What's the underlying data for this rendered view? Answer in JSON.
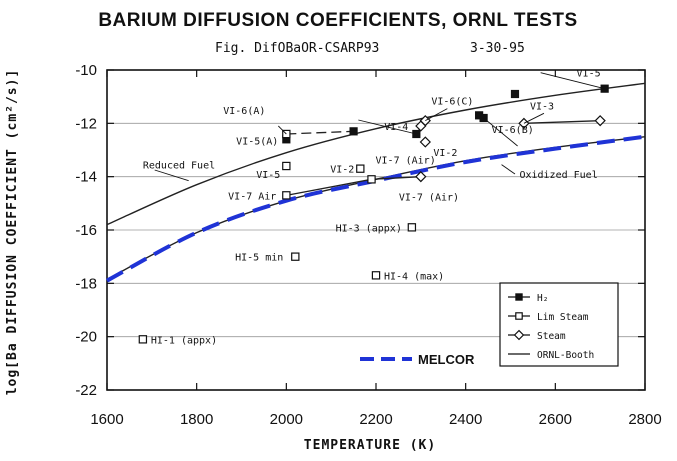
{
  "chart_data": {
    "type": "scatter",
    "title": "BARIUM DIFFUSION COEFFICIENTS, ORNL TESTS",
    "subtitle_fig": "Fig. DifOBaOR-CSARP93",
    "subtitle_date": "3-30-95",
    "xlabel": "TEMPERATURE (K)",
    "ylabel": "log[Ba DIFFUSION COEFFICIENT (cm²/s)]",
    "xlim": [
      1600,
      2800
    ],
    "ylim": [
      -22,
      -10
    ],
    "x_ticks": [
      1600,
      1800,
      2000,
      2200,
      2400,
      2600,
      2800
    ],
    "x_tick_labels": [
      "1600",
      "1800",
      "2000",
      "2200",
      "2400",
      "2600",
      "2800"
    ],
    "y_ticks": [
      -22,
      -20,
      -18,
      -16,
      -14,
      -12,
      -10
    ],
    "y_tick_labels": [
      "-22",
      "-20",
      "-18",
      "-16",
      "-14",
      "-12",
      "-10"
    ],
    "grid": "horizontal",
    "legend_position": "bottom-right",
    "series": [
      {
        "name": "H₂",
        "marker": "filled-square",
        "points": [
          {
            "x": 2000,
            "y": -12.6,
            "label": "VI-5(A)"
          },
          {
            "x": 2150,
            "y": -12.3,
            "label": ""
          },
          {
            "x": 2290,
            "y": -12.4,
            "label": "VI-4"
          },
          {
            "x": 2430,
            "y": -11.7,
            "label": ""
          },
          {
            "x": 2440,
            "y": -11.8,
            "label": "VI-6(B)"
          },
          {
            "x": 2510,
            "y": -10.9,
            "label": ""
          },
          {
            "x": 2710,
            "y": -10.7,
            "label": "VI-5"
          }
        ]
      },
      {
        "name": "Lim Steam",
        "marker": "open-square",
        "points": [
          {
            "x": 2000,
            "y": -12.4,
            "label": "VI-6(A)"
          },
          {
            "x": 2000,
            "y": -13.6,
            "label": "VI-5"
          },
          {
            "x": 2000,
            "y": -14.7,
            "label": "VI-7 Air"
          },
          {
            "x": 2165,
            "y": -13.7,
            "label": "VI-2"
          },
          {
            "x": 2190,
            "y": -14.1,
            "label": "VI-7 (Air)"
          },
          {
            "x": 2280,
            "y": -15.9,
            "label": "HI-3 (appx)"
          },
          {
            "x": 2020,
            "y": -17.0,
            "label": "HI-5 min"
          },
          {
            "x": 2200,
            "y": -17.7,
            "label": "HI-4 (max)"
          },
          {
            "x": 1680,
            "y": -20.1,
            "label": "HI-1 (appx)"
          }
        ]
      },
      {
        "name": "Steam",
        "marker": "open-diamond",
        "points": [
          {
            "x": 2300,
            "y": -12.1,
            "label": ""
          },
          {
            "x": 2310,
            "y": -11.9,
            "label": "VI-6(C)"
          },
          {
            "x": 2310,
            "y": -12.7,
            "label": "VI-2"
          },
          {
            "x": 2300,
            "y": -14.0,
            "label": "VI-7 (Air)"
          },
          {
            "x": 2530,
            "y": -12.0,
            "label": "VI-3"
          },
          {
            "x": 2700,
            "y": -11.9,
            "label": ""
          }
        ]
      }
    ],
    "connectors": [
      {
        "style": "dash",
        "points": [
          [
            2000,
            -12.4
          ],
          [
            2150,
            -12.3
          ]
        ]
      },
      {
        "style": "solid",
        "points": [
          [
            2000,
            -14.7
          ],
          [
            2190,
            -14.1
          ],
          [
            2300,
            -14.0
          ]
        ]
      },
      {
        "style": "solid",
        "points": [
          [
            2530,
            -12.0
          ],
          [
            2700,
            -11.9
          ]
        ]
      },
      {
        "style": "solid",
        "points": [
          [
            2290,
            -12.4
          ],
          [
            2310,
            -11.9
          ]
        ]
      }
    ],
    "curves": [
      {
        "name": "ORNL-Booth",
        "label": "Reduced Fuel",
        "style": "solid",
        "color": "#222222",
        "points": [
          [
            1600,
            -15.8
          ],
          [
            1800,
            -14.3
          ],
          [
            2000,
            -13.1
          ],
          [
            2200,
            -12.2
          ],
          [
            2400,
            -11.5
          ],
          [
            2600,
            -10.95
          ],
          [
            2800,
            -10.5
          ]
        ]
      },
      {
        "name": "ORNL-Booth",
        "label": "Oxidized Fuel",
        "style": "solid",
        "color": "#222222",
        "points": [
          [
            1600,
            -17.85
          ],
          [
            1800,
            -16.1
          ],
          [
            2000,
            -14.9
          ],
          [
            2200,
            -14.1
          ],
          [
            2400,
            -13.4
          ],
          [
            2600,
            -12.9
          ],
          [
            2800,
            -12.5
          ]
        ]
      },
      {
        "name": "MELCOR",
        "label": "",
        "style": "dashed",
        "color": "#1f33d6",
        "points": [
          [
            1600,
            -17.9
          ],
          [
            1800,
            -16.1
          ],
          [
            2000,
            -14.9
          ],
          [
            2200,
            -14.15
          ],
          [
            2400,
            -13.45
          ],
          [
            2600,
            -12.95
          ],
          [
            2800,
            -12.5
          ]
        ]
      }
    ],
    "annotations": [
      {
        "text": "Reduced Fuel",
        "x": 1680,
        "y": -13.7
      },
      {
        "text": "Oxidized Fuel",
        "x": 2520,
        "y": -14.05
      }
    ],
    "legend": [
      {
        "label": "H₂",
        "marker": "filled-square"
      },
      {
        "label": "Lim Steam",
        "marker": "open-square"
      },
      {
        "label": "Steam",
        "marker": "open-diamond"
      },
      {
        "label": "ORNL-Booth",
        "marker": "line"
      }
    ],
    "melcor_legend": {
      "label": "MELCOR",
      "color": "#1f33d6"
    }
  }
}
